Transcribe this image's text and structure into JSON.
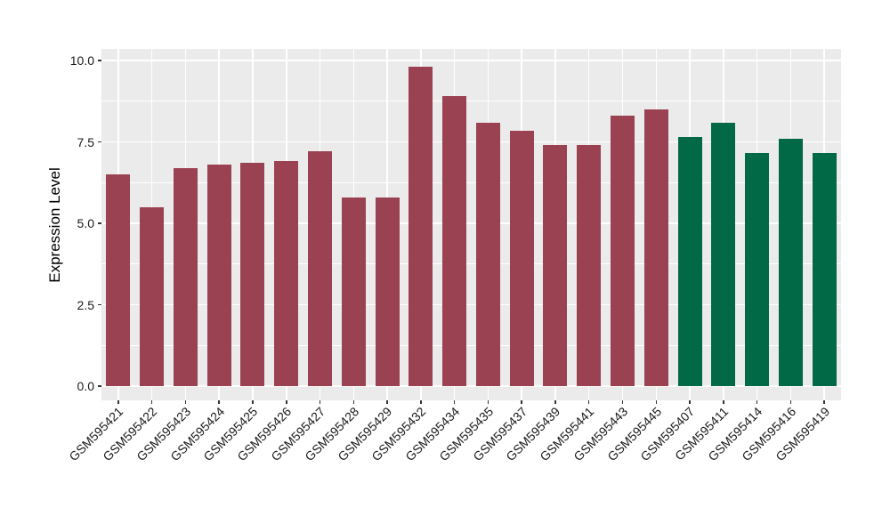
{
  "chart_data": {
    "type": "bar",
    "title": "",
    "ylabel": "Expression Level",
    "xlabel": "",
    "ylim": [
      0,
      10
    ],
    "grid": true,
    "legend": false,
    "panel_background": "#EBEBEB",
    "grid_color": "#FFFFFF",
    "axis_text_color": "#1A1A1A",
    "axis_title_color": "#000000",
    "tick_mark_color": "#333333",
    "colors": {
      "maroon": "#9B4252",
      "green": "#016946"
    },
    "y_axis": {
      "ticks": [
        {
          "value": 0,
          "label": "0.0"
        },
        {
          "value": 2.5,
          "label": "2.5"
        },
        {
          "value": 5,
          "label": "5.0"
        },
        {
          "value": 7.5,
          "label": "7.5"
        },
        {
          "value": 10,
          "label": "10.0"
        }
      ],
      "minor_ticks": [
        1.25,
        3.75,
        6.25,
        8.75
      ]
    },
    "bars": [
      {
        "label": "GSM595421",
        "value": 6.5,
        "group": "maroon"
      },
      {
        "label": "GSM595422",
        "value": 5.5,
        "group": "maroon"
      },
      {
        "label": "GSM595423",
        "value": 6.7,
        "group": "maroon"
      },
      {
        "label": "GSM595424",
        "value": 6.8,
        "group": "maroon"
      },
      {
        "label": "GSM595425",
        "value": 6.85,
        "group": "maroon"
      },
      {
        "label": "GSM595426",
        "value": 6.9,
        "group": "maroon"
      },
      {
        "label": "GSM595427",
        "value": 7.2,
        "group": "maroon"
      },
      {
        "label": "GSM595428",
        "value": 5.8,
        "group": "maroon"
      },
      {
        "label": "GSM595429",
        "value": 5.8,
        "group": "maroon"
      },
      {
        "label": "GSM595432",
        "value": 9.8,
        "group": "maroon"
      },
      {
        "label": "GSM595434",
        "value": 8.9,
        "group": "maroon"
      },
      {
        "label": "GSM595435",
        "value": 8.1,
        "group": "maroon"
      },
      {
        "label": "GSM595437",
        "value": 7.85,
        "group": "maroon"
      },
      {
        "label": "GSM595439",
        "value": 7.4,
        "group": "maroon"
      },
      {
        "label": "GSM595441",
        "value": 7.4,
        "group": "maroon"
      },
      {
        "label": "GSM595443",
        "value": 8.3,
        "group": "maroon"
      },
      {
        "label": "GSM595445",
        "value": 8.5,
        "group": "maroon"
      },
      {
        "label": "GSM595407",
        "value": 7.65,
        "group": "green"
      },
      {
        "label": "GSM595411",
        "value": 8.1,
        "group": "green"
      },
      {
        "label": "GSM595414",
        "value": 7.15,
        "group": "green"
      },
      {
        "label": "GSM595416",
        "value": 7.6,
        "group": "green"
      },
      {
        "label": "GSM595419",
        "value": 7.15,
        "group": "green"
      }
    ]
  }
}
